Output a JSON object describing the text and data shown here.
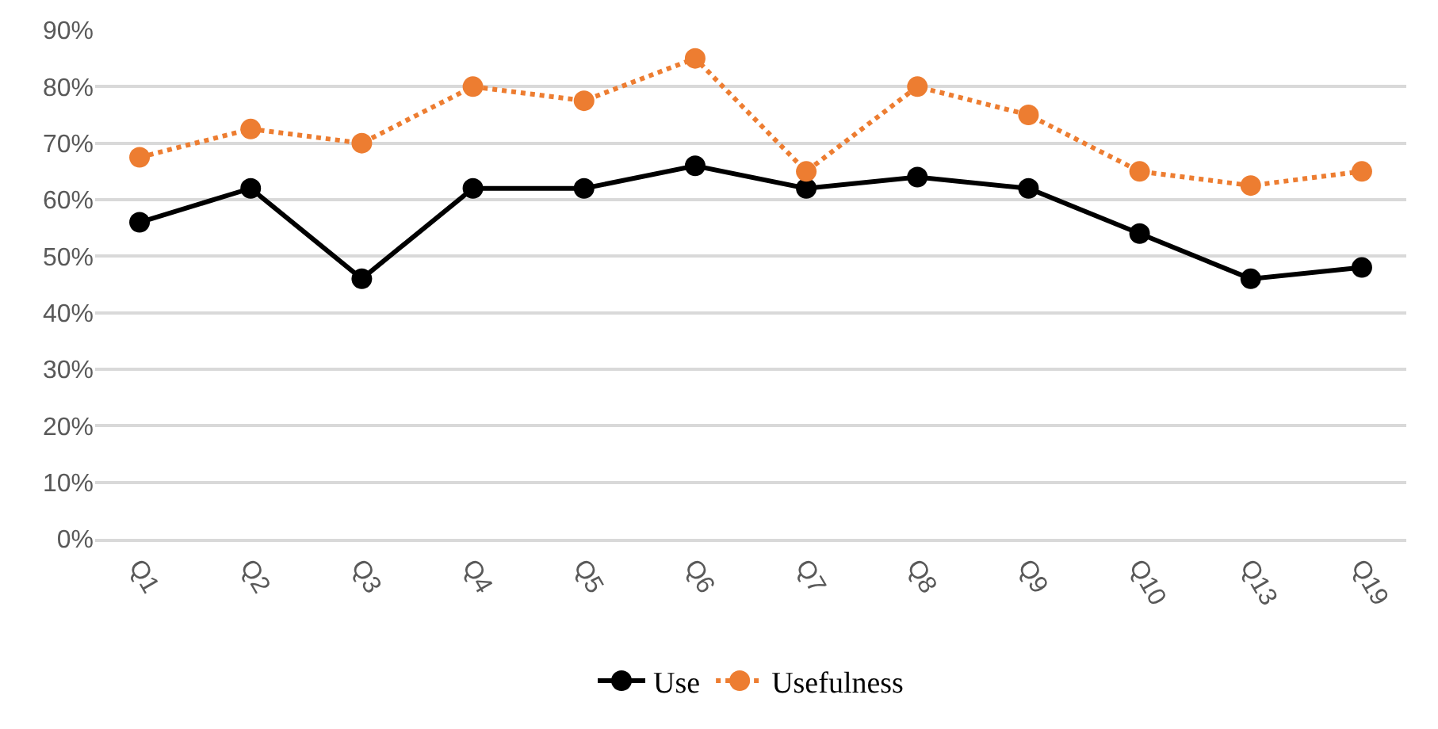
{
  "chart_data": {
    "type": "line",
    "categories": [
      "Q1",
      "Q2",
      "Q3",
      "Q4",
      "Q5",
      "Q6",
      "Q7",
      "Q8",
      "Q9",
      "Q10",
      "Q13",
      "Q19"
    ],
    "series": [
      {
        "name": "Use",
        "color": "#000000",
        "line_style": "solid",
        "values": [
          56,
          62,
          46,
          62,
          62,
          66,
          62,
          64,
          62,
          54,
          46,
          48
        ]
      },
      {
        "name": "Usefulness",
        "color": "#ed7d31",
        "line_style": "dotted",
        "values": [
          67.5,
          72.5,
          70,
          80,
          77.5,
          85,
          65,
          80,
          75,
          65,
          62.5,
          65
        ]
      }
    ],
    "ylim": [
      0,
      90
    ],
    "yticks": [
      {
        "value": 0,
        "label": "0%"
      },
      {
        "value": 10,
        "label": "10%"
      },
      {
        "value": 20,
        "label": "20%"
      },
      {
        "value": 30,
        "label": "30%"
      },
      {
        "value": 40,
        "label": "40%"
      },
      {
        "value": 50,
        "label": "50%"
      },
      {
        "value": 60,
        "label": "60%"
      },
      {
        "value": 70,
        "label": "70%"
      },
      {
        "value": 80,
        "label": "80%"
      },
      {
        "value": 90,
        "label": "90%"
      }
    ],
    "grid": "y",
    "legend": "bottom",
    "marker": "circle"
  }
}
